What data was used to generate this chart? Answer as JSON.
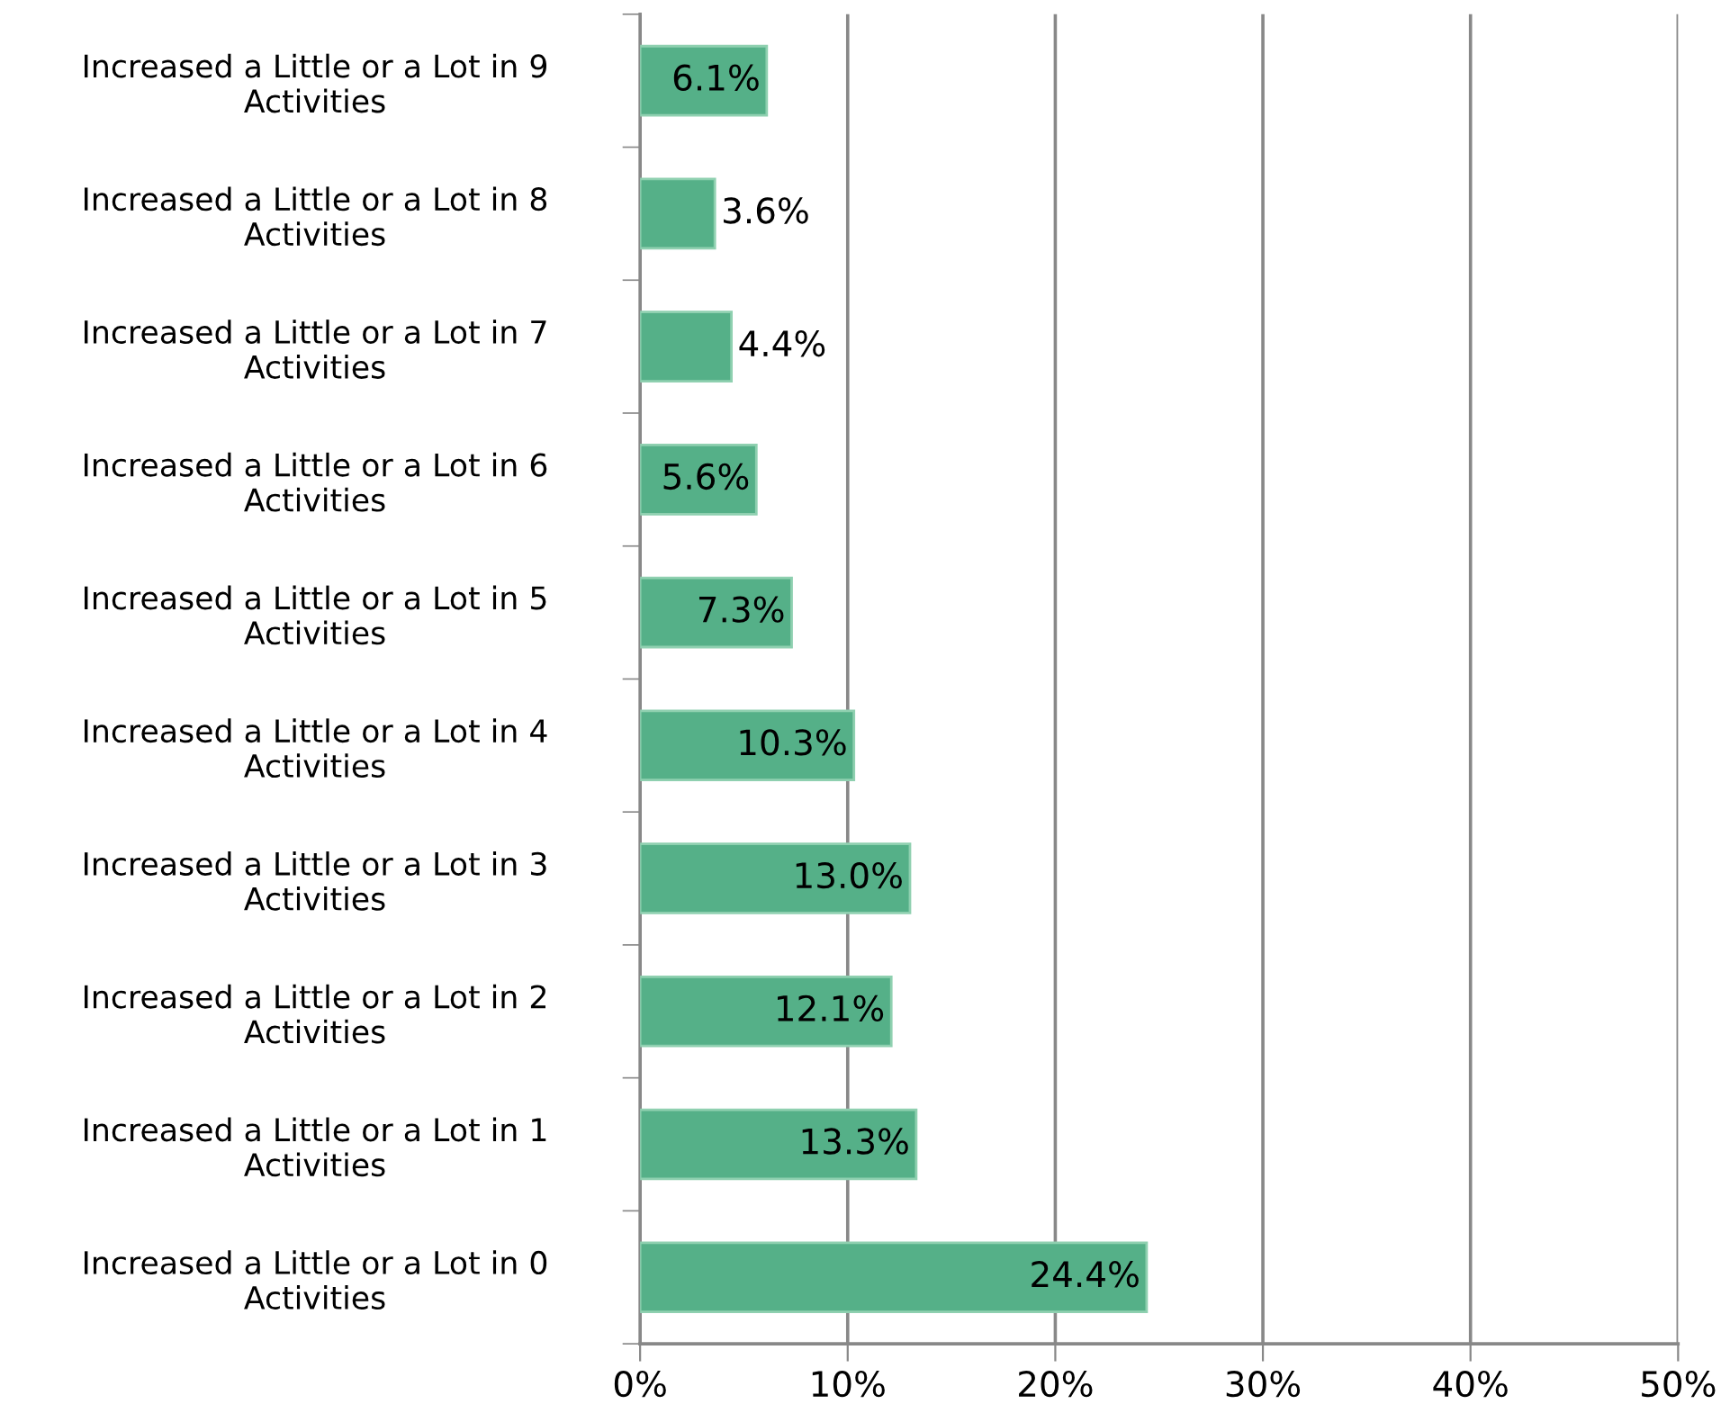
{
  "chart_data": {
    "type": "bar",
    "orientation": "horizontal",
    "categories": [
      "Increased a Little or a Lot in 9\nActivities",
      "Increased a Little or a Lot in 8\nActivities",
      "Increased a Little or a Lot in 7\nActivities",
      "Increased a Little or a Lot in 6\nActivities",
      "Increased a Little or a Lot in 5\nActivities",
      "Increased a Little or a Lot in 4\nActivities",
      "Increased a Little or a Lot in 3\nActivities",
      "Increased a Little or a Lot in 2\nActivities",
      "Increased a Little or a Lot in 1\nActivities",
      "Increased a Little or a Lot in 0\nActivities"
    ],
    "values": [
      6.1,
      3.6,
      4.4,
      5.6,
      7.3,
      10.3,
      13.0,
      12.1,
      13.3,
      24.4
    ],
    "value_labels": [
      "6.1%",
      "3.6%",
      "4.4%",
      "5.6%",
      "7.3%",
      "10.3%",
      "13.0%",
      "12.1%",
      "13.3%",
      "24.4%"
    ],
    "color": "#55b088",
    "xlim": [
      0,
      50
    ],
    "xticks": [
      {
        "value": 0,
        "label": "0%"
      },
      {
        "value": 10,
        "label": "10%"
      },
      {
        "value": 20,
        "label": "20%"
      },
      {
        "value": 30,
        "label": "30%"
      },
      {
        "value": 40,
        "label": "40%"
      },
      {
        "value": 50,
        "label": "50%"
      }
    ],
    "grid": "x",
    "legend": false
  }
}
